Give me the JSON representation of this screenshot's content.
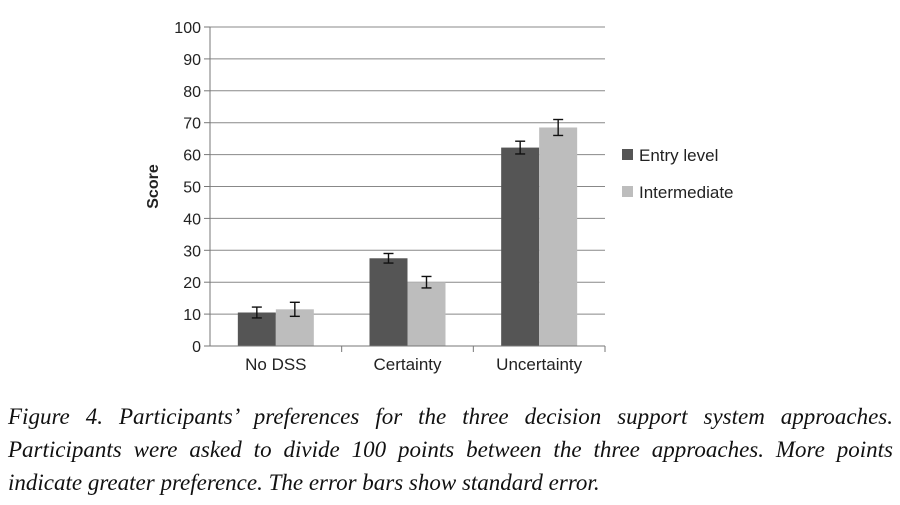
{
  "chart_data": {
    "type": "bar",
    "categories": [
      "No DSS",
      "Certainty",
      "Uncertainty"
    ],
    "series": [
      {
        "name": "Entry level",
        "values": [
          10.5,
          27.5,
          62.2
        ],
        "errors": [
          1.7,
          1.5,
          2.0
        ],
        "color": "#555555"
      },
      {
        "name": "Intermediate",
        "values": [
          11.5,
          20.0,
          68.5
        ],
        "errors": [
          2.2,
          1.8,
          2.5
        ],
        "color": "#bdbdbd"
      }
    ],
    "xlabel": "",
    "ylabel": "Score",
    "ylim": [
      0,
      100
    ],
    "yticks": [
      0,
      10,
      20,
      30,
      40,
      50,
      60,
      70,
      80,
      90,
      100
    ],
    "grid": true,
    "legend_position": "right"
  },
  "caption": "Figure 4. Participants’ preferences for the three decision support system approaches. Participants were asked to divide 100 points between the three approaches. More points indicate greater preference. The error bars show standard error."
}
